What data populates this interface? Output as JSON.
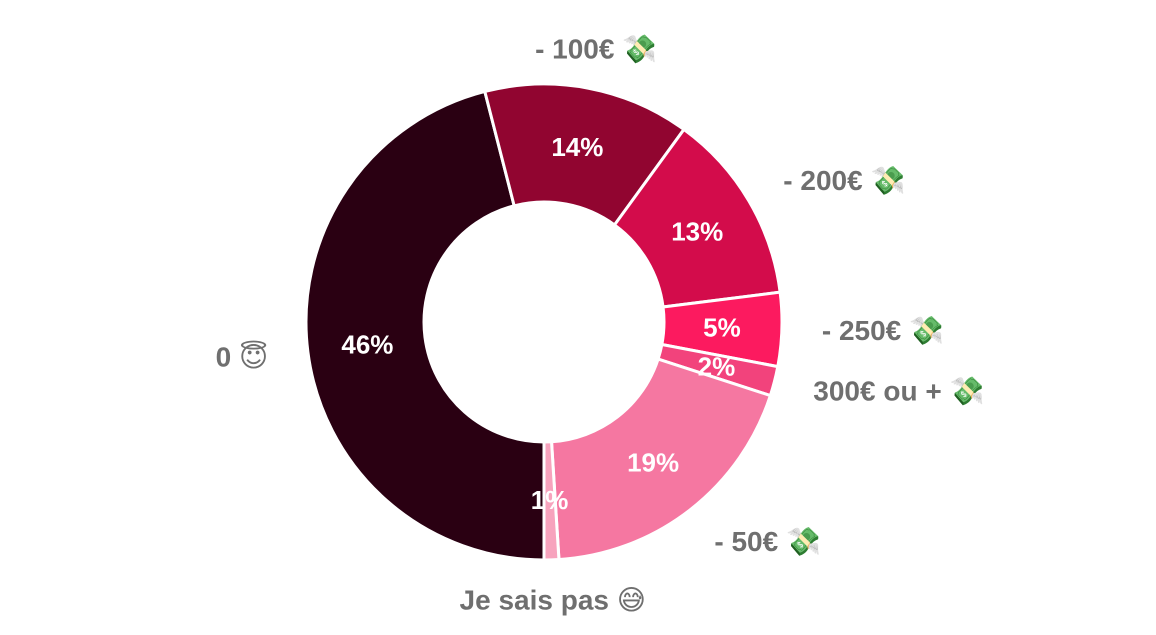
{
  "chart_data": {
    "type": "pie",
    "donut": true,
    "title": "",
    "start_angle_deg": 90,
    "direction": "clockwise",
    "slices": [
      {
        "label": "0 😇",
        "value": 46,
        "value_label": "46%",
        "color": "#2a0012"
      },
      {
        "label": "- 100€ 💸",
        "value": 14,
        "value_label": "14%",
        "color": "#910530"
      },
      {
        "label": "- 200€ 💸",
        "value": 13,
        "value_label": "13%",
        "color": "#d30c4b"
      },
      {
        "label": "- 250€ 💸",
        "value": 5,
        "value_label": "5%",
        "color": "#fc1a5f"
      },
      {
        "label": "300€ ou + 💸",
        "value": 2,
        "value_label": "2%",
        "color": "#f2437c"
      },
      {
        "label": "- 50€ 💸",
        "value": 19,
        "value_label": "19%",
        "color": "#f577a1"
      },
      {
        "label": "Je sais pas 😅",
        "value": 1,
        "value_label": "1%",
        "color": "#f7a3bd"
      }
    ]
  }
}
